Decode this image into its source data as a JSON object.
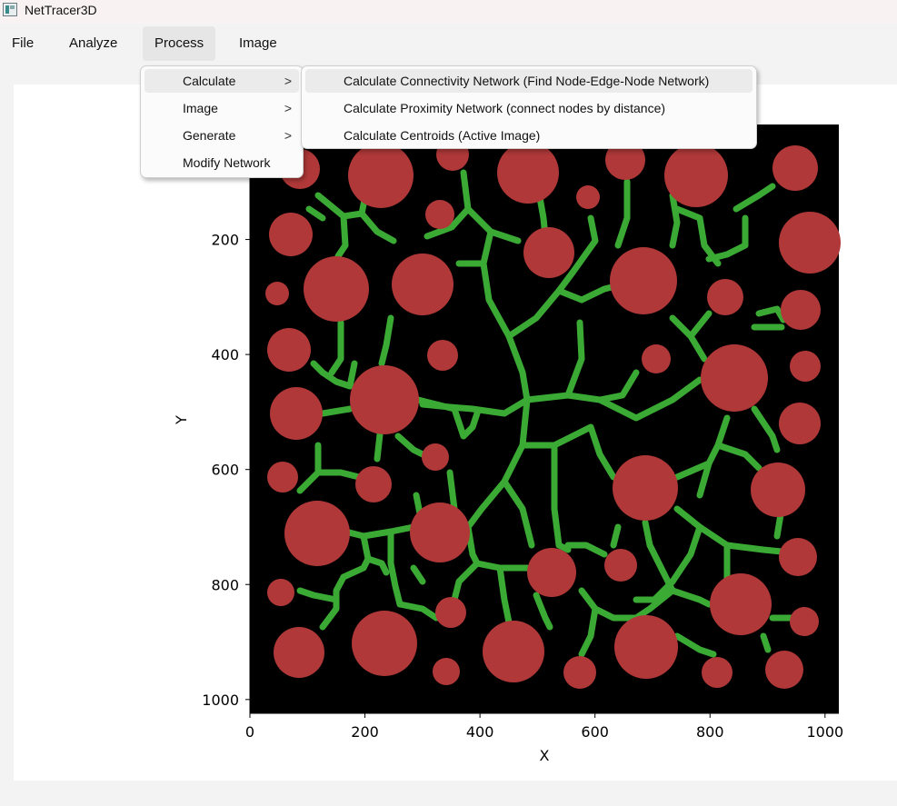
{
  "window": {
    "title": "NetTracer3D",
    "icon": "app-icon"
  },
  "menubar": {
    "items": [
      {
        "label": "File"
      },
      {
        "label": "Analyze"
      },
      {
        "label": "Process"
      },
      {
        "label": "Image"
      }
    ]
  },
  "process_menu": {
    "items": [
      {
        "label": "Calculate",
        "arrow": ">"
      },
      {
        "label": "Image",
        "arrow": ">"
      },
      {
        "label": "Generate",
        "arrow": ">"
      },
      {
        "label": "Modify Network"
      }
    ]
  },
  "calculate_submenu": {
    "items": [
      {
        "label": "Calculate Connectivity Network (Find Node-Edge-Node Network)"
      },
      {
        "label": "Calculate Proximity Network (connect nodes by distance)"
      },
      {
        "label": "Calculate Centroids (Active Image)"
      }
    ]
  },
  "colors": {
    "node": "#b03838",
    "edge": "#3aaa35",
    "background": "#000000"
  },
  "chart_data": {
    "type": "image",
    "xlabel": "X",
    "ylabel": "Y",
    "xlim": [
      0,
      1024
    ],
    "ylim": [
      1024,
      0
    ],
    "xticks": [
      0,
      200,
      400,
      600,
      800,
      1000
    ],
    "yticks": [
      200,
      400,
      600,
      800,
      1000
    ]
  }
}
